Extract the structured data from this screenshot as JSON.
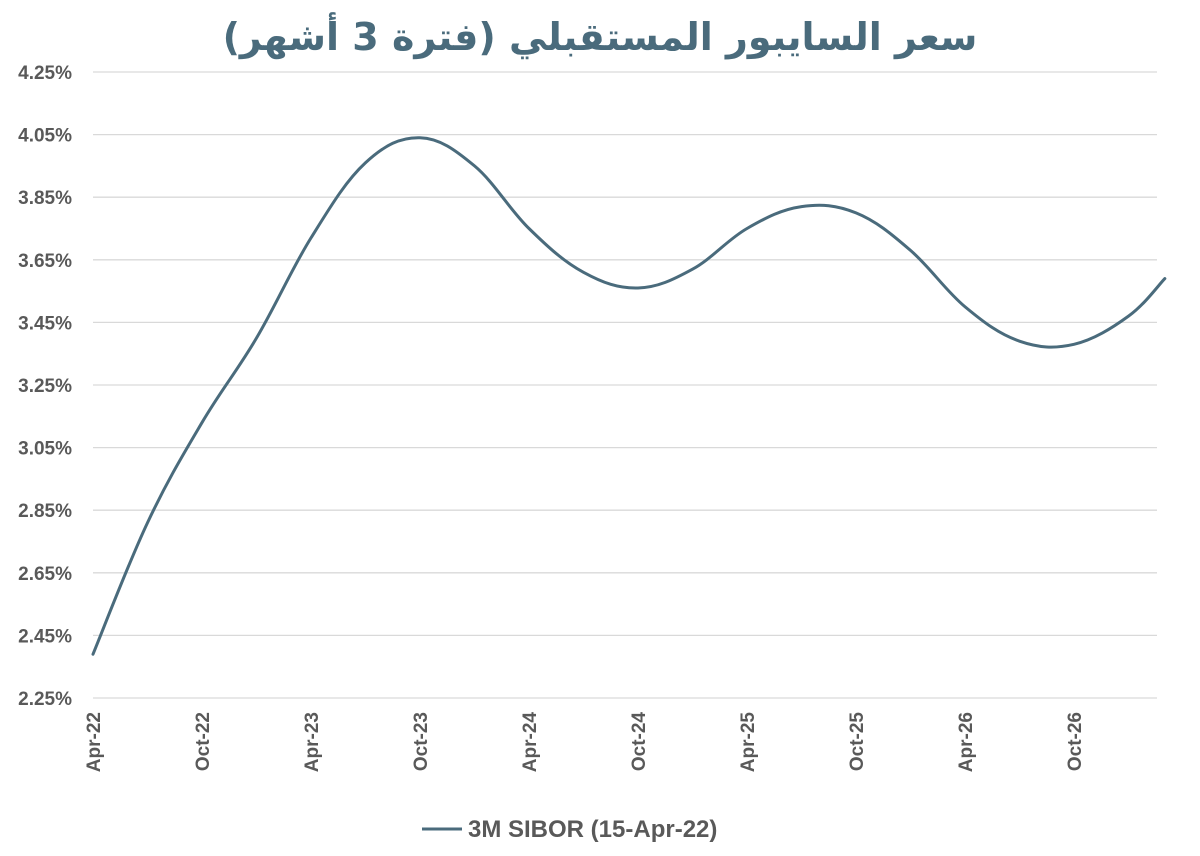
{
  "chart_data": {
    "type": "line",
    "title": "سعر السايبور المستقبلي (فترة 3 أشهر)",
    "xlabel": "",
    "ylabel": "",
    "ylim": [
      2.25,
      4.25
    ],
    "y_ticks": [
      "4.25%",
      "4.05%",
      "3.85%",
      "3.65%",
      "3.45%",
      "3.25%",
      "3.05%",
      "2.85%",
      "2.65%",
      "2.45%",
      "2.25%"
    ],
    "x_ticks": [
      "Apr-22",
      "Oct-22",
      "Apr-23",
      "Oct-23",
      "Apr-24",
      "Oct-24",
      "Apr-25",
      "Oct-25",
      "Apr-26",
      "Oct-26"
    ],
    "grid": true,
    "legend_position": "bottom-center",
    "series": [
      {
        "name": "3M SIBOR (15-Apr-22)",
        "color": "#4a6b7c",
        "x": [
          "Apr-22",
          "Jul-22",
          "Oct-22",
          "Jan-23",
          "Apr-23",
          "Jul-23",
          "Oct-23",
          "Jan-24",
          "Apr-24",
          "Jul-24",
          "Oct-24",
          "Jan-25",
          "Apr-25",
          "Jul-25",
          "Oct-25",
          "Jan-26",
          "Apr-26",
          "Jul-26",
          "Oct-26",
          "Jan-27",
          "Mar-27"
        ],
        "values": [
          2.39,
          2.81,
          3.13,
          3.4,
          3.72,
          3.96,
          4.04,
          3.95,
          3.75,
          3.61,
          3.56,
          3.62,
          3.75,
          3.82,
          3.8,
          3.68,
          3.5,
          3.39,
          3.38,
          3.47,
          3.59
        ]
      }
    ]
  }
}
